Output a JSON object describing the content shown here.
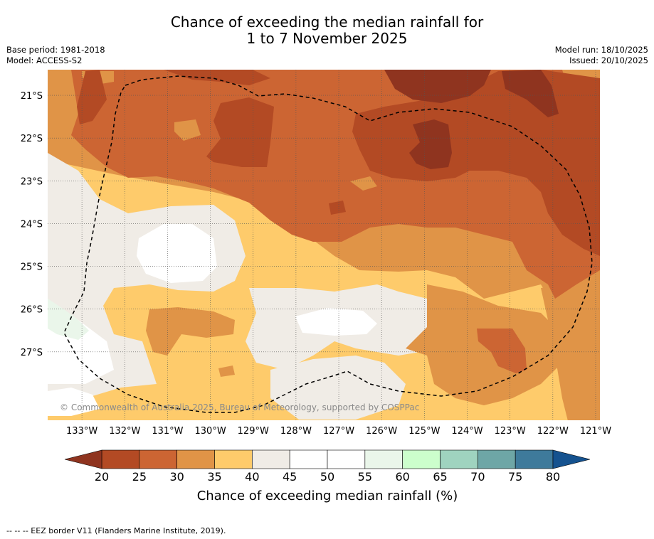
{
  "title": {
    "line1": "Chance of exceeding the median rainfall for",
    "line2": "1 to 7 November 2025"
  },
  "meta": {
    "base_period": "Base period: 1981-2018",
    "model": "Model: ACCESS-S2",
    "model_run": "Model run: 18/10/2025",
    "issued": "Issued: 20/10/2025"
  },
  "copyright": "© Commonwealth of Australia 2025, Bureau of Meteorology, supported by COSPPac",
  "footer": "-- -- -- EEZ border V11 (Flanders Marine Institute, 2019).",
  "colors": {
    "c20_25": "#b34a24",
    "c25_30": "#cc6533",
    "c30_35": "#e09447",
    "c35_40": "#fecb6b",
    "c40_45": "#f0ece6",
    "c45_55": "#ffffff",
    "c55_60": "#eaf6ea",
    "c60_65": "#ccfecc",
    "c65_70": "#9fd3bf",
    "c70_75": "#6ea6a6",
    "c75_80": "#3e7a9b",
    "under": "#8f341f",
    "over": "#15528f"
  },
  "chart_data": {
    "type": "heatmap",
    "title": "Chance of exceeding the median rainfall for 1 to 7 November 2025",
    "x_axis": {
      "ticks": [
        -133,
        -132,
        -131,
        -130,
        -129,
        -128,
        -127,
        -126,
        -125,
        -124,
        -123,
        -122,
        -121
      ],
      "tick_labels": [
        "133°W",
        "132°W",
        "131°W",
        "130°W",
        "129°W",
        "128°W",
        "127°W",
        "126°W",
        "125°W",
        "124°W",
        "123°W",
        "122°W",
        "121°W"
      ],
      "range": [
        -133.8,
        -120.9
      ]
    },
    "y_axis": {
      "ticks": [
        -21,
        -22,
        -23,
        -24,
        -25,
        -26,
        -27
      ],
      "tick_labels": [
        "21°S",
        "22°S",
        "23°S",
        "24°S",
        "25°S",
        "26°S",
        "27°S"
      ],
      "range": [
        -28.6,
        -20.4
      ]
    },
    "colorbar": {
      "label": "Chance of exceeding median rainfall (%)",
      "bounds": [
        20,
        25,
        30,
        35,
        40,
        45,
        50,
        55,
        60,
        65,
        70,
        75,
        80
      ],
      "tick_labels": [
        "20",
        "25",
        "30",
        "35",
        "40",
        "45",
        "50",
        "55",
        "60",
        "65",
        "70",
        "75",
        "80"
      ],
      "extend": "both"
    },
    "regions": [
      {
        "name": "north-band",
        "range_pct": "25-30"
      },
      {
        "name": "northwest-core",
        "range_pct": "20-25"
      },
      {
        "name": "northeast-core",
        "range_pct": "<20"
      },
      {
        "name": "central-band",
        "range_pct": "30-35"
      },
      {
        "name": "west-central",
        "range_pct": "35-40"
      },
      {
        "name": "west-interior",
        "range_pct": "45-55"
      },
      {
        "name": "far-west",
        "range_pct": "55-60"
      }
    ],
    "eez_border": "dashed black line"
  }
}
